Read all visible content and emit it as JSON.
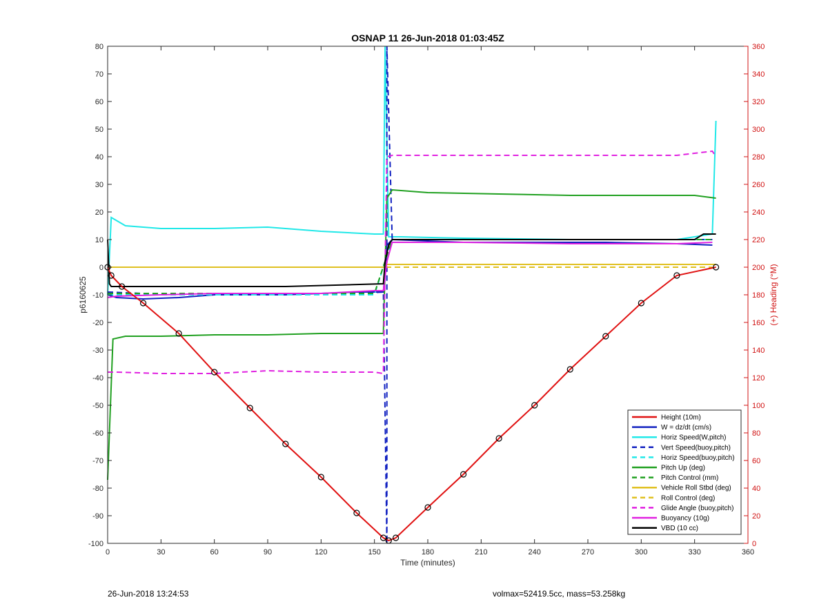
{
  "chart_data": {
    "type": "line",
    "title": "OSNAP 11 26-Jun-2018 01:03:45Z",
    "xlabel": "Time (minutes)",
    "ylabel": "p6160625",
    "y2label": "(+) Heading (°M)",
    "xlim": [
      0,
      360
    ],
    "ylim": [
      -100,
      80
    ],
    "y2lim": [
      0,
      360
    ],
    "xticks": [
      "0",
      "30",
      "60",
      "90",
      "120",
      "150",
      "180",
      "210",
      "240",
      "270",
      "300",
      "330",
      "360"
    ],
    "yticks": [
      "80",
      "70",
      "60",
      "50",
      "40",
      "30",
      "20",
      "10",
      "0",
      "-10",
      "-20",
      "-30",
      "-40",
      "-50",
      "-60",
      "-70",
      "-80",
      "-90",
      "-100"
    ],
    "y2ticks": [
      "360",
      "340",
      "320",
      "300",
      "280",
      "260",
      "240",
      "220",
      "200",
      "180",
      "160",
      "140",
      "120",
      "100",
      "80",
      "60",
      "40",
      "20",
      "0"
    ],
    "legend_position": "bottom-right",
    "grid": false,
    "series": [
      {
        "name": "Height (10m)",
        "color": "#e01010",
        "style": "solid",
        "x": [
          0,
          2,
          8,
          20,
          40,
          60,
          80,
          100,
          120,
          140,
          155,
          158,
          162,
          180,
          200,
          220,
          240,
          260,
          280,
          300,
          320,
          342
        ],
        "y": [
          0,
          -3,
          -7,
          -13,
          -24,
          -38,
          -51,
          -64,
          -76,
          -89,
          -98,
          -99,
          -98,
          -87,
          -75,
          -62,
          -50,
          -37,
          -25,
          -13,
          -3,
          0
        ]
      },
      {
        "name": "W = dz/dt (cm/s)",
        "color": "#1020c0",
        "style": "solid",
        "x": [
          0,
          5,
          20,
          40,
          60,
          80,
          100,
          120,
          140,
          155,
          157,
          160,
          180,
          200,
          240,
          280,
          320,
          340
        ],
        "y": [
          -10,
          -11,
          -11.5,
          -11,
          -10,
          -10,
          -10,
          -9.5,
          -9,
          -9,
          8,
          10,
          9.5,
          9,
          9,
          9,
          8.5,
          8
        ]
      },
      {
        "name": "Horiz Speed(W,pitch)",
        "color": "#20e8e8",
        "style": "solid",
        "x": [
          0,
          2,
          10,
          30,
          60,
          90,
          120,
          150,
          155,
          156,
          158,
          165,
          200,
          260,
          320,
          340,
          342
        ],
        "y": [
          -10,
          18,
          15,
          14,
          14,
          14.5,
          13,
          12,
          12,
          80,
          11,
          11,
          10.5,
          10,
          10,
          12,
          53
        ]
      },
      {
        "name": "Vert Speed(buoy,pitch)",
        "color": "#1020c0",
        "style": "dashed",
        "x": [
          0,
          20,
          60,
          100,
          140,
          155,
          157,
          157,
          160,
          200,
          260,
          320,
          340
        ],
        "y": [
          -9,
          -9.5,
          -9.5,
          -9.5,
          -9.5,
          -9,
          -100,
          80,
          10,
          10,
          10,
          10,
          10
        ]
      },
      {
        "name": "Horiz Speed(buoy,pitch)",
        "color": "#20e8e8",
        "style": "dashed",
        "x": [
          0,
          20,
          60,
          100,
          150,
          160,
          200,
          260,
          340
        ],
        "y": [
          -10,
          -10,
          -10,
          -10,
          -10,
          10,
          10,
          10,
          10
        ]
      },
      {
        "name": "Pitch Up (deg)",
        "color": "#20a020",
        "style": "solid",
        "x": [
          0,
          3,
          10,
          30,
          60,
          90,
          120,
          150,
          155,
          157,
          160,
          180,
          220,
          260,
          300,
          330,
          342
        ],
        "y": [
          -77,
          -26,
          -25,
          -25,
          -24.5,
          -24.5,
          -24,
          -24,
          -24,
          25,
          28,
          27,
          26.5,
          26,
          26,
          26,
          25
        ]
      },
      {
        "name": "Pitch Control (mm)",
        "color": "#20a020",
        "style": "dashed",
        "x": [
          0,
          20,
          60,
          100,
          150,
          160,
          220,
          280,
          340
        ],
        "y": [
          -9.5,
          -9.5,
          -9.5,
          -9.5,
          -9.5,
          10,
          10,
          10,
          10
        ]
      },
      {
        "name": "Vehicle Roll Stbd (deg)",
        "color": "#e0c020",
        "style": "solid",
        "x": [
          0,
          5,
          30,
          60,
          90,
          120,
          150,
          155,
          157,
          160,
          200,
          260,
          320,
          342
        ],
        "y": [
          0,
          0,
          0,
          0,
          0,
          0,
          0,
          0,
          1,
          1,
          1,
          1,
          1,
          1
        ]
      },
      {
        "name": "Roll Control (deg)",
        "color": "#e0c020",
        "style": "dashed",
        "x": [
          0,
          20,
          60,
          100,
          150,
          160,
          220,
          280,
          340
        ],
        "y": [
          0,
          0,
          0,
          0,
          0,
          0,
          0,
          0,
          0
        ]
      },
      {
        "name": "Glide Angle (buoy,pitch)",
        "color": "#e020e0",
        "style": "dashed",
        "x": [
          0,
          5,
          30,
          60,
          90,
          120,
          150,
          155,
          157,
          160,
          200,
          260,
          320,
          340,
          342
        ],
        "y": [
          -38,
          -38,
          -38.5,
          -38.5,
          -37.5,
          -38,
          -38,
          -38.5,
          40,
          40.5,
          40.5,
          40.5,
          40.5,
          42,
          40
        ]
      },
      {
        "name": "Buoyancy (10g)",
        "color": "#e020e0",
        "style": "solid",
        "x": [
          0,
          5,
          30,
          60,
          90,
          120,
          150,
          155,
          157,
          160,
          200,
          260,
          320,
          340
        ],
        "y": [
          -11,
          -10.5,
          -10,
          -9.5,
          -9.5,
          -9.5,
          -8.5,
          -8.5,
          2,
          9,
          9,
          8.5,
          8.5,
          9
        ]
      },
      {
        "name": "VBD (10 cc)",
        "color": "#000000",
        "style": "solid",
        "x": [
          0,
          1,
          2,
          50,
          100,
          155,
          156,
          158,
          160,
          200,
          260,
          300,
          330,
          335,
          342
        ],
        "y": [
          10,
          -6,
          -7,
          -7,
          -7,
          -6,
          2,
          8,
          10,
          10,
          10,
          10,
          10,
          12,
          12
        ]
      }
    ],
    "annotations": [
      "26-Jun-2018 13:24:53",
      "volmax=52419.5cc, mass=53.258kg"
    ]
  },
  "footer": {
    "left": "26-Jun-2018 13:24:53",
    "right": "volmax=52419.5cc, mass=53.258kg"
  }
}
